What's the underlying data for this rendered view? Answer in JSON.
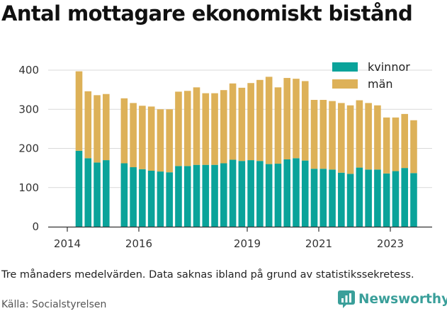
{
  "title": "Antal mottagare ekonomiskt bistånd",
  "note": "Tre månaders medelvärden. Data saknas ibland på grund av statistikssekretess.",
  "source": "Källa: Socialstyrelsen",
  "brand": {
    "name": "Newsworthy",
    "icon": "newsworthy-logo-icon",
    "color": "#3a9f9a"
  },
  "colors": {
    "kvinnor": "#0aa39a",
    "man": "#ddb158",
    "grid": "#d9d9d9",
    "axis": "#333333"
  },
  "chart_data": {
    "type": "bar",
    "stacked": true,
    "x_ticks": [
      "2014",
      "2016",
      "2019",
      "2021",
      "2023"
    ],
    "y_ticks": [
      0,
      100,
      200,
      300,
      400
    ],
    "ylim": [
      0,
      420
    ],
    "grid": true,
    "legend_position": "top-right",
    "categories": [
      "2014-Q2",
      "2014-Q3",
      "2014-Q4",
      "2015-Q1",
      "2015-Q2",
      "2015-Q3",
      "2016-Q1",
      "2016-Q2",
      "2016-Q3",
      "2016-Q4",
      "2017-Q1",
      "2017-Q2",
      "2017-Q3",
      "2017-Q4",
      "2018-Q1",
      "2018-Q2",
      "2018-Q3",
      "2018-Q4",
      "2019-Q1",
      "2019-Q2",
      "2019-Q3",
      "2019-Q4",
      "2020-Q1",
      "2020-Q2",
      "2020-Q3",
      "2020-Q4",
      "2021-Q1",
      "2021-Q2",
      "2021-Q3",
      "2021-Q4",
      "2022-Q1",
      "2022-Q2",
      "2022-Q3",
      "2022-Q4",
      "2023-Q1",
      "2023-Q2",
      "2023-Q3",
      "2023-Q4"
    ],
    "series": [
      {
        "name": "kvinnor",
        "values": [
          194,
          175,
          164,
          170,
          null,
          162,
          152,
          147,
          143,
          141,
          139,
          155,
          155,
          158,
          158,
          158,
          162,
          171,
          168,
          170,
          168,
          160,
          161,
          172,
          175,
          169,
          148,
          148,
          146,
          138,
          135,
          151,
          146,
          146,
          136,
          142,
          150,
          137
        ]
      },
      {
        "name": "män",
        "values": [
          203,
          171,
          172,
          169,
          null,
          166,
          164,
          162,
          164,
          159,
          161,
          190,
          192,
          198,
          183,
          183,
          187,
          195,
          187,
          197,
          207,
          223,
          195,
          208,
          203,
          203,
          176,
          176,
          175,
          178,
          175,
          172,
          170,
          164,
          143,
          137,
          138,
          135
        ]
      }
    ]
  }
}
